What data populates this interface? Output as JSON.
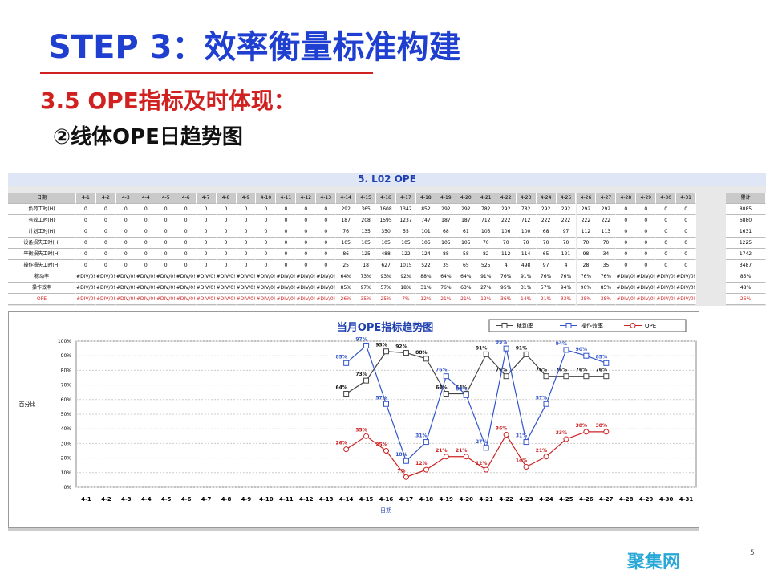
{
  "header": {
    "title": "STEP 3：效率衡量标准构建",
    "subtitle": "3.5 OPE指标及时体现：",
    "section": "②线体OPE日趋势图"
  },
  "table": {
    "title": "5. L02  OPE",
    "header": [
      "日期",
      "4-1",
      "4-2",
      "4-3",
      "4-4",
      "4-5",
      "4-6",
      "4-7",
      "4-8",
      "4-9",
      "4-10",
      "4-11",
      "4-12",
      "4-13",
      "4-14",
      "4-15",
      "4-16",
      "4-17",
      "4-18",
      "4-19",
      "4-20",
      "4-21",
      "4-22",
      "4-23",
      "4-24",
      "4-25",
      "4-26",
      "4-27",
      "4-28",
      "4-29",
      "4-30",
      "4-31",
      "累计"
    ],
    "rows": [
      [
        "负荷工时(H)",
        "0",
        "0",
        "0",
        "0",
        "0",
        "0",
        "0",
        "0",
        "0",
        "0",
        "0",
        "0",
        "0",
        "292",
        "365",
        "1608",
        "1342",
        "852",
        "292",
        "292",
        "782",
        "292",
        "782",
        "292",
        "292",
        "292",
        "292",
        "0",
        "0",
        "0",
        "0",
        "8085"
      ],
      [
        "有效工时(H)",
        "0",
        "0",
        "0",
        "0",
        "0",
        "0",
        "0",
        "0",
        "0",
        "0",
        "0",
        "0",
        "0",
        "187",
        "208",
        "1595",
        "1237",
        "747",
        "187",
        "187",
        "712",
        "222",
        "712",
        "222",
        "222",
        "222",
        "222",
        "0",
        "0",
        "0",
        "0",
        "6880"
      ],
      [
        "计划工时(H)",
        "0",
        "0",
        "0",
        "0",
        "0",
        "0",
        "0",
        "0",
        "0",
        "0",
        "0",
        "0",
        "0",
        "76",
        "135",
        "350",
        "55",
        "101",
        "68",
        "61",
        "105",
        "106",
        "100",
        "68",
        "97",
        "112",
        "113",
        "0",
        "0",
        "0",
        "0",
        "1631"
      ],
      [
        "设备损失工时(H)",
        "0",
        "0",
        "0",
        "0",
        "0",
        "0",
        "0",
        "0",
        "0",
        "0",
        "0",
        "0",
        "0",
        "105",
        "105",
        "105",
        "105",
        "105",
        "105",
        "105",
        "70",
        "70",
        "70",
        "70",
        "70",
        "70",
        "70",
        "0",
        "0",
        "0",
        "0",
        "1225"
      ],
      [
        "平衡损失工时(H)",
        "0",
        "0",
        "0",
        "0",
        "0",
        "0",
        "0",
        "0",
        "0",
        "0",
        "0",
        "0",
        "0",
        "86",
        "125",
        "488",
        "122",
        "124",
        "88",
        "58",
        "82",
        "112",
        "114",
        "65",
        "121",
        "98",
        "34",
        "0",
        "0",
        "0",
        "0",
        "1742"
      ],
      [
        "操作损失工时(H)",
        "0",
        "0",
        "0",
        "0",
        "0",
        "0",
        "0",
        "0",
        "0",
        "0",
        "0",
        "0",
        "0",
        "25",
        "18",
        "627",
        "1015",
        "522",
        "35",
        "65",
        "525",
        "4",
        "498",
        "97",
        "4",
        "28",
        "35",
        "0",
        "0",
        "0",
        "0",
        "3487"
      ],
      [
        "稼动率",
        "#DIV/0!",
        "#DIV/0!",
        "#DIV/0!",
        "#DIV/0!",
        "#DIV/0!",
        "#DIV/0!",
        "#DIV/0!",
        "#DIV/0!",
        "#DIV/0!",
        "#DIV/0!",
        "#DIV/0!",
        "#DIV/0!",
        "#DIV/0!",
        "64%",
        "73%",
        "93%",
        "92%",
        "88%",
        "64%",
        "64%",
        "91%",
        "76%",
        "91%",
        "76%",
        "76%",
        "76%",
        "76%",
        "#DIV/0!",
        "#DIV/0!",
        "#DIV/0!",
        "#DIV/0!",
        "85%"
      ],
      [
        "操作效率",
        "#DIV/0!",
        "#DIV/0!",
        "#DIV/0!",
        "#DIV/0!",
        "#DIV/0!",
        "#DIV/0!",
        "#DIV/0!",
        "#DIV/0!",
        "#DIV/0!",
        "#DIV/0!",
        "#DIV/0!",
        "#DIV/0!",
        "#DIV/0!",
        "85%",
        "97%",
        "57%",
        "18%",
        "31%",
        "76%",
        "63%",
        "27%",
        "95%",
        "31%",
        "57%",
        "94%",
        "90%",
        "85%",
        "#DIV/0!",
        "#DIV/0!",
        "#DIV/0!",
        "#DIV/0!",
        "48%"
      ],
      [
        "OPE",
        "#DIV/0!",
        "#DIV/0!",
        "#DIV/0!",
        "#DIV/0!",
        "#DIV/0!",
        "#DIV/0!",
        "#DIV/0!",
        "#DIV/0!",
        "#DIV/0!",
        "#DIV/0!",
        "#DIV/0!",
        "#DIV/0!",
        "#DIV/0!",
        "26%",
        "35%",
        "25%",
        "7%",
        "12%",
        "21%",
        "21%",
        "12%",
        "36%",
        "14%",
        "21%",
        "33%",
        "38%",
        "38%",
        "#DIV/0!",
        "#DIV/0!",
        "#DIV/0!",
        "#DIV/0!",
        "26%"
      ]
    ]
  },
  "chart_data": {
    "type": "line",
    "title": "当月OPE指标趋势图",
    "x_label": "日期",
    "y_label": "百分比",
    "categories": [
      "4-1",
      "4-2",
      "4-3",
      "4-4",
      "4-5",
      "4-6",
      "4-7",
      "4-8",
      "4-9",
      "4-10",
      "4-11",
      "4-12",
      "4-13",
      "4-14",
      "4-15",
      "4-16",
      "4-17",
      "4-18",
      "4-19",
      "4-20",
      "4-21",
      "4-22",
      "4-23",
      "4-24",
      "4-25",
      "4-26",
      "4-27",
      "4-28",
      "4-29",
      "4-30",
      "4-31"
    ],
    "ylim": [
      0,
      100
    ],
    "yticks": [
      {
        "value": 0,
        "label": "0%"
      },
      {
        "value": 10,
        "label": "10%"
      },
      {
        "value": 20,
        "label": "20%"
      },
      {
        "value": 30,
        "label": "30%"
      },
      {
        "value": 40,
        "label": "40%"
      },
      {
        "value": 50,
        "label": "50%"
      },
      {
        "value": 60,
        "label": "60%"
      },
      {
        "value": 70,
        "label": "70%"
      },
      {
        "value": 80,
        "label": "80%"
      },
      {
        "value": 90,
        "label": "90%"
      },
      {
        "value": 100,
        "label": "100%"
      }
    ],
    "grid": true,
    "legend": "top-right",
    "series": [
      {
        "name": "稼动率",
        "color": "#444444",
        "marker": "square",
        "values": [
          null,
          null,
          null,
          null,
          null,
          null,
          null,
          null,
          null,
          null,
          null,
          null,
          null,
          64,
          73,
          93,
          92,
          88,
          64,
          64,
          91,
          76,
          91,
          76,
          76,
          76,
          76,
          null,
          null,
          null,
          null
        ],
        "value_labels": [
          null,
          null,
          null,
          null,
          null,
          null,
          null,
          null,
          null,
          null,
          null,
          null,
          null,
          "64%",
          "73%",
          "93%",
          "92%",
          "88%",
          "64%",
          "64%",
          "91%",
          "76%",
          "91%",
          "76%",
          "76%",
          "76%",
          "76%",
          null,
          null,
          null,
          null
        ]
      },
      {
        "name": "操作效率",
        "color": "#3355cc",
        "marker": "square",
        "values": [
          null,
          null,
          null,
          null,
          null,
          null,
          null,
          null,
          null,
          null,
          null,
          null,
          null,
          85,
          97,
          57,
          18,
          31,
          76,
          63,
          27,
          95,
          31,
          57,
          94,
          90,
          85,
          null,
          null,
          null,
          null
        ],
        "value_labels": [
          null,
          null,
          null,
          null,
          null,
          null,
          null,
          null,
          null,
          null,
          null,
          null,
          null,
          "85%",
          "97%",
          "57%",
          "18%",
          "31%",
          "76%",
          "63%",
          "27%",
          "95%",
          "31%",
          "57%",
          "94%",
          "90%",
          "85%",
          null,
          null,
          null,
          null
        ]
      },
      {
        "name": "OPE",
        "color": "#cc2222",
        "marker": "circle",
        "values": [
          null,
          null,
          null,
          null,
          null,
          null,
          null,
          null,
          null,
          null,
          null,
          null,
          null,
          26,
          35,
          25,
          7,
          12,
          21,
          21,
          12,
          36,
          14,
          21,
          33,
          38,
          38,
          null,
          null,
          null,
          null
        ],
        "value_labels": [
          null,
          null,
          null,
          null,
          null,
          null,
          null,
          null,
          null,
          null,
          null,
          null,
          null,
          "26%",
          "35%",
          "25%",
          "7%",
          "12%",
          "21%",
          "21%",
          "12%",
          "36%",
          "14%",
          "21%",
          "33%",
          "38%",
          "38%",
          null,
          null,
          null,
          null
        ]
      }
    ]
  },
  "footer": {
    "watermark": "聚集网",
    "page": "5"
  }
}
